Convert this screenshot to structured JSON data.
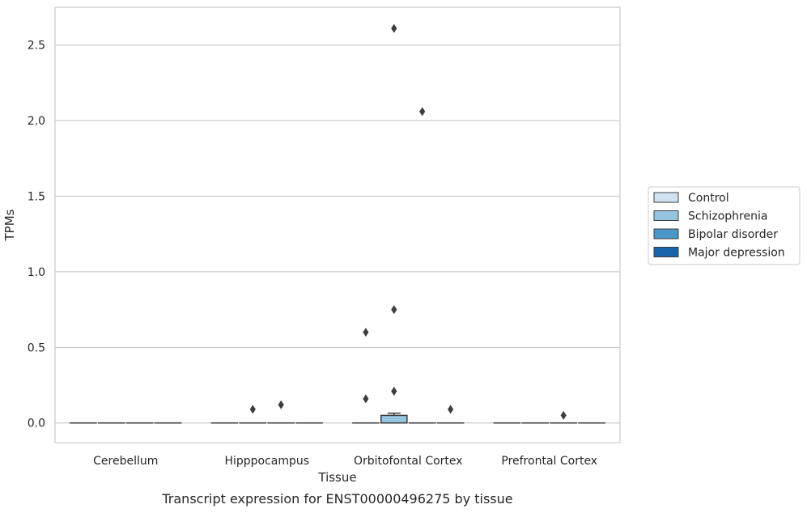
{
  "chart_data": {
    "type": "box",
    "caption": "Transcript expression for ENST00000496275 by tissue",
    "xlabel": "Tissue",
    "ylabel": "TPMs",
    "ylim": [
      -0.13,
      2.75
    ],
    "yticks": [
      "0.0",
      "0.5",
      "1.0",
      "1.5",
      "2.0",
      "2.5"
    ],
    "ytick_values": [
      0.0,
      0.5,
      1.0,
      1.5,
      2.0,
      2.5
    ],
    "grid": "horizontal",
    "legend_position": "right",
    "categories": [
      "Cerebellum",
      "Hipppocampus",
      "Orbitofontal Cortex",
      "Prefrontal Cortex"
    ],
    "series": [
      {
        "name": "Control",
        "color": "#d0e1f2",
        "boxes": [
          {
            "q1": 0,
            "median": 0,
            "q3": 0,
            "whislo": 0,
            "whishi": 0,
            "fliers": []
          },
          {
            "q1": 0,
            "median": 0,
            "q3": 0,
            "whislo": 0,
            "whishi": 0,
            "fliers": []
          },
          {
            "q1": 0,
            "median": 0,
            "q3": 0,
            "whislo": 0,
            "whishi": 0,
            "fliers": [
              0.16,
              0.6
            ]
          },
          {
            "q1": 0,
            "median": 0,
            "q3": 0,
            "whislo": 0,
            "whishi": 0,
            "fliers": []
          }
        ]
      },
      {
        "name": "Schizophrenia",
        "color": "#94c4df",
        "boxes": [
          {
            "q1": 0,
            "median": 0,
            "q3": 0,
            "whislo": 0,
            "whishi": 0,
            "fliers": []
          },
          {
            "q1": 0,
            "median": 0,
            "q3": 0,
            "whislo": 0,
            "whishi": 0,
            "fliers": [
              0.09
            ]
          },
          {
            "q1": 0,
            "median": 0,
            "q3": 0.05,
            "whislo": 0,
            "whishi": 0.065,
            "fliers": [
              0.21,
              0.75,
              2.61
            ]
          },
          {
            "q1": 0,
            "median": 0,
            "q3": 0,
            "whislo": 0,
            "whishi": 0,
            "fliers": []
          }
        ]
      },
      {
        "name": "Bipolar disorder",
        "color": "#4a98c9",
        "boxes": [
          {
            "q1": 0,
            "median": 0,
            "q3": 0,
            "whislo": 0,
            "whishi": 0,
            "fliers": []
          },
          {
            "q1": 0,
            "median": 0,
            "q3": 0,
            "whislo": 0,
            "whishi": 0,
            "fliers": [
              0.12
            ]
          },
          {
            "q1": 0,
            "median": 0,
            "q3": 0,
            "whislo": 0,
            "whishi": 0,
            "fliers": [
              2.06
            ]
          },
          {
            "q1": 0,
            "median": 0,
            "q3": 0,
            "whislo": 0,
            "whishi": 0,
            "fliers": [
              0.05
            ]
          }
        ]
      },
      {
        "name": "Major depression",
        "color": "#1764ab",
        "boxes": [
          {
            "q1": 0,
            "median": 0,
            "q3": 0,
            "whislo": 0,
            "whishi": 0,
            "fliers": []
          },
          {
            "q1": 0,
            "median": 0,
            "q3": 0,
            "whislo": 0,
            "whishi": 0,
            "fliers": []
          },
          {
            "q1": 0,
            "median": 0,
            "q3": 0,
            "whislo": 0,
            "whishi": 0,
            "fliers": [
              0.09
            ]
          },
          {
            "q1": 0,
            "median": 0,
            "q3": 0,
            "whislo": 0,
            "whishi": 0,
            "fliers": []
          }
        ]
      }
    ]
  }
}
